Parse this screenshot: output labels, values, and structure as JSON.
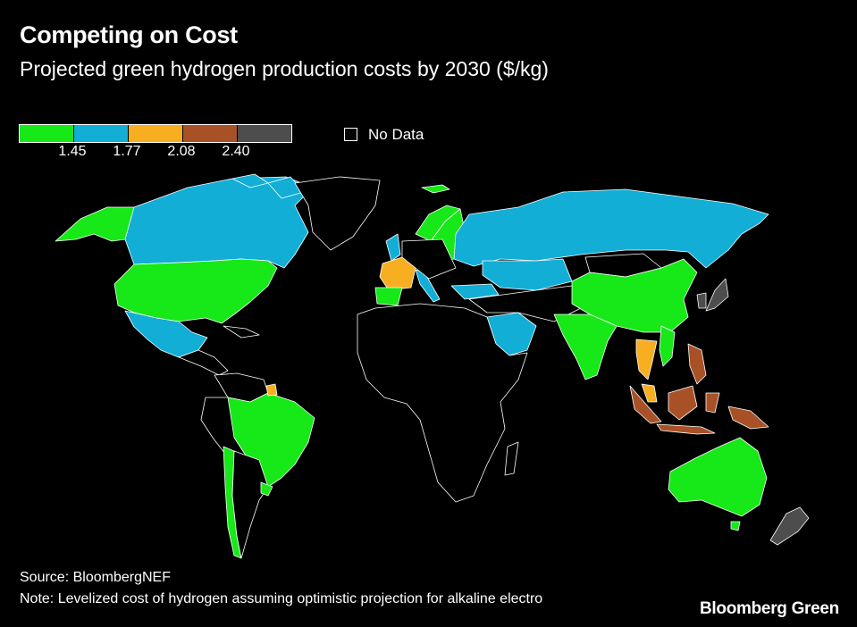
{
  "title": "Competing on Cost",
  "subtitle": "Projected green hydrogen production costs by 2030 ($/kg)",
  "legend": {
    "colors": [
      "#17e817",
      "#12aed6",
      "#f7ae21",
      "#a85127",
      "#4d4d4d"
    ],
    "ticks": [
      "1.45",
      "1.77",
      "2.08",
      "2.40"
    ],
    "no_data_label": "No Data"
  },
  "map": {
    "background": "#000000",
    "border_color": "#ffffff",
    "regions": [
      {
        "name": "Canada",
        "band": "1.45-1.77"
      },
      {
        "name": "Alaska",
        "band": "<1.45"
      },
      {
        "name": "United States",
        "band": "<1.45"
      },
      {
        "name": "Mexico",
        "band": "1.45-1.77"
      },
      {
        "name": "Greenland",
        "band": "no data"
      },
      {
        "name": "Brazil",
        "band": "<1.45"
      },
      {
        "name": "Chile",
        "band": "<1.45"
      },
      {
        "name": "Argentina",
        "band": "no data"
      },
      {
        "name": "Uruguay",
        "band": "<1.45"
      },
      {
        "name": "French Guiana",
        "band": "1.77-2.08"
      },
      {
        "name": "Iceland",
        "band": "<1.45"
      },
      {
        "name": "Norway",
        "band": "<1.45"
      },
      {
        "name": "Sweden",
        "band": "<1.45"
      },
      {
        "name": "Finland",
        "band": "1.45-1.77"
      },
      {
        "name": "United Kingdom",
        "band": "1.45-1.77"
      },
      {
        "name": "France",
        "band": "1.77-2.08"
      },
      {
        "name": "Spain",
        "band": "<1.45"
      },
      {
        "name": "Italy",
        "band": "1.45-1.77"
      },
      {
        "name": "Germany",
        "band": "no data"
      },
      {
        "name": "Turkey",
        "band": "1.45-1.77"
      },
      {
        "name": "Russia",
        "band": "1.45-1.77"
      },
      {
        "name": "Kazakhstan",
        "band": "1.45-1.77"
      },
      {
        "name": "Mongolia",
        "band": "no data"
      },
      {
        "name": "China",
        "band": "<1.45"
      },
      {
        "name": "India",
        "band": "<1.45"
      },
      {
        "name": "Saudi Arabia",
        "band": "1.45-1.77"
      },
      {
        "name": "Oman",
        "band": "1.45-1.77"
      },
      {
        "name": "Japan",
        "band": ">2.40"
      },
      {
        "name": "South Korea",
        "band": ">2.40"
      },
      {
        "name": "Vietnam",
        "band": "<1.45"
      },
      {
        "name": "Thailand",
        "band": "1.77-2.08"
      },
      {
        "name": "Malaysia",
        "band": "1.77-2.08"
      },
      {
        "name": "Philippines",
        "band": "2.08-2.40"
      },
      {
        "name": "Indonesia",
        "band": "2.08-2.40"
      },
      {
        "name": "Australia",
        "band": "<1.45"
      },
      {
        "name": "New Zealand",
        "band": ">2.40"
      },
      {
        "name": "Africa",
        "band": "no data"
      }
    ]
  },
  "footer": {
    "source": "Source: BloombergNEF",
    "note": "Note: Levelized cost of hydrogen assuming optimistic projection for alkaline electro",
    "brand": "Bloomberg Green"
  }
}
